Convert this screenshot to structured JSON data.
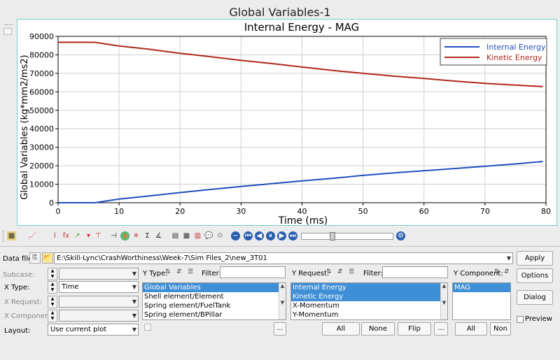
{
  "window": {
    "title": "Global Variables-1"
  },
  "side": {
    "dots": "...."
  },
  "chart_data": {
    "type": "line",
    "title": "Internal Energy - MAG",
    "xlabel": "Time (ms)",
    "ylabel": "Global Variables (kg*mm2/ms2)",
    "xlim": [
      0,
      80
    ],
    "ylim": [
      0,
      90000
    ],
    "xticks": [
      "0",
      "10",
      "20",
      "30",
      "40",
      "50",
      "60",
      "70",
      "80"
    ],
    "yticks": [
      "0",
      "10000",
      "20000",
      "30000",
      "40000",
      "50000",
      "60000",
      "70000",
      "80000",
      "90000"
    ],
    "grid": true,
    "legend_position": "top-right",
    "series": [
      {
        "name": "Internal Energy",
        "color": "#1f4fbf",
        "x": [
          0,
          6,
          10,
          15,
          20,
          25,
          30,
          35,
          40,
          45,
          50,
          55,
          60,
          65,
          70,
          75,
          79.5
        ],
        "y": [
          0,
          0,
          2000,
          3700,
          5500,
          7200,
          8800,
          10300,
          11800,
          13200,
          14800,
          16100,
          17300,
          18500,
          19700,
          21000,
          22300
        ]
      },
      {
        "name": "Kinetic Energy",
        "color": "#b2271d",
        "x": [
          0,
          6,
          10,
          15,
          20,
          25,
          30,
          35,
          40,
          45,
          50,
          55,
          60,
          65,
          70,
          75,
          79.5
        ],
        "y": [
          86800,
          86800,
          84800,
          83000,
          80800,
          79000,
          77000,
          75300,
          73400,
          71600,
          70000,
          68500,
          67200,
          65800,
          64600,
          63600,
          62800
        ]
      }
    ]
  },
  "data_file": {
    "label": "Data file:",
    "value": "E:\\Skill-Lync\\CrashWorthiness\\Week-7\\Sim Files_2\\new_3T01",
    "apply": "Apply"
  },
  "subcase": {
    "label": "Subcase:",
    "value": ""
  },
  "xtype": {
    "label": "X Type:",
    "value": "Time"
  },
  "xrequest": {
    "label": "X Request:",
    "value": ""
  },
  "xcomponent": {
    "label": "X Component:",
    "value": ""
  },
  "layout": {
    "label": "Layout:",
    "value": "Use current plot"
  },
  "ytype": {
    "label": "Y Type:",
    "filter_label": "Filter:",
    "filter_value": "",
    "items": [
      "Global Variables",
      "Shell element/Element",
      "Spring element/FuelTank",
      "Spring element/BPillar"
    ]
  },
  "yrequest": {
    "label": "Y Request:",
    "filter_label": "Filter:",
    "filter_value": "",
    "items": [
      "Internal Energy",
      "Kinetic Energy",
      "X-Momentum",
      "Y-Momentum"
    ],
    "all": "All",
    "none": "None",
    "flip": "Flip",
    "more": "..."
  },
  "ycomponent": {
    "label": "Y Component:",
    "items": [
      "MAG"
    ],
    "all": "All",
    "none": "Non"
  },
  "right_buttons": {
    "options": "Options",
    "dialog": "Dialog",
    "preview": "Preview"
  },
  "ytype_more": "..."
}
